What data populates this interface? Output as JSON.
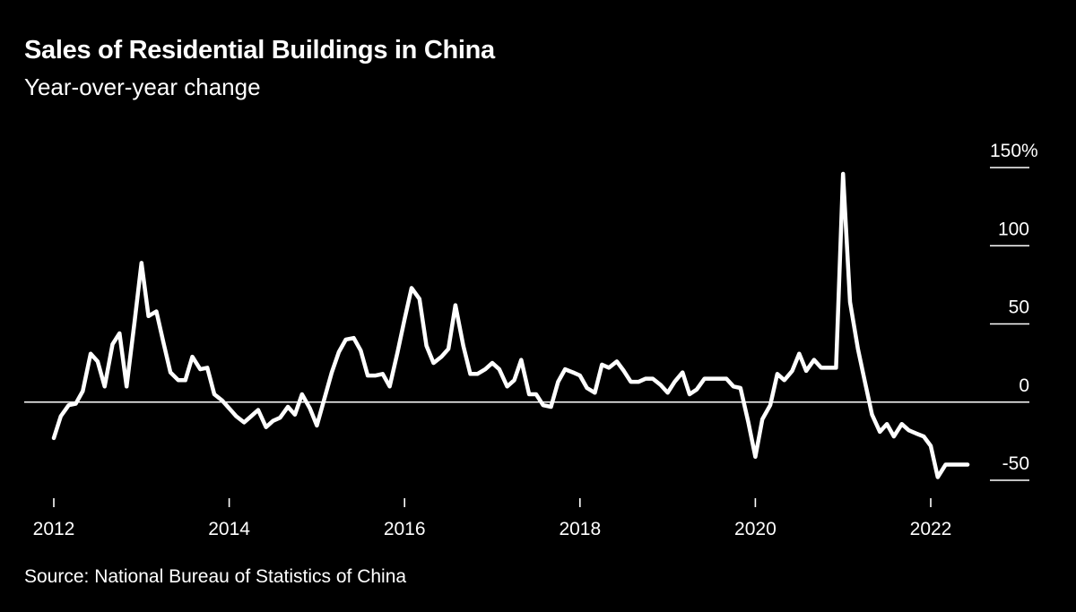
{
  "header": {
    "title": "Sales of Residential Buildings in China",
    "subtitle": "Year-over-year change"
  },
  "footer": {
    "source": "Source: National Bureau of Statistics of China"
  },
  "colors": {
    "background": "#000000",
    "line": "#ffffff",
    "text": "#ffffff"
  },
  "chart_data": {
    "type": "line",
    "title": "Sales of Residential Buildings in China",
    "subtitle": "Year-over-year change",
    "xlabel": "",
    "ylabel": "",
    "y_unit": "%",
    "ylim": [
      -50,
      150
    ],
    "xlim": [
      2012.0,
      2022.5
    ],
    "yticks": [
      -50,
      0,
      50,
      100,
      150
    ],
    "ytick_labels": [
      "-50",
      "0",
      "50",
      "100",
      "150%"
    ],
    "xticks": [
      2012,
      2014,
      2016,
      2018,
      2020,
      2022
    ],
    "xtick_labels": [
      "2012",
      "2014",
      "2016",
      "2018",
      "2020",
      "2022"
    ],
    "grid": false,
    "zero_line": true,
    "legend": "none",
    "series": [
      {
        "name": "Sales of residential buildings, YoY change (%)",
        "x": [
          2012.0,
          2012.08,
          2012.17,
          2012.25,
          2012.33,
          2012.42,
          2012.5,
          2012.58,
          2012.67,
          2012.75,
          2012.83,
          2012.92,
          2013.0,
          2013.08,
          2013.17,
          2013.25,
          2013.33,
          2013.42,
          2013.5,
          2013.58,
          2013.67,
          2013.75,
          2013.83,
          2013.92,
          2014.0,
          2014.08,
          2014.17,
          2014.25,
          2014.33,
          2014.42,
          2014.5,
          2014.58,
          2014.67,
          2014.75,
          2014.83,
          2014.92,
          2015.0,
          2015.08,
          2015.17,
          2015.25,
          2015.33,
          2015.42,
          2015.5,
          2015.58,
          2015.67,
          2015.75,
          2015.83,
          2015.92,
          2016.0,
          2016.08,
          2016.17,
          2016.25,
          2016.33,
          2016.42,
          2016.5,
          2016.58,
          2016.67,
          2016.75,
          2016.83,
          2016.92,
          2017.0,
          2017.08,
          2017.17,
          2017.25,
          2017.33,
          2017.42,
          2017.5,
          2017.58,
          2017.67,
          2017.75,
          2017.83,
          2017.92,
          2018.0,
          2018.08,
          2018.17,
          2018.25,
          2018.33,
          2018.42,
          2018.5,
          2018.58,
          2018.67,
          2018.75,
          2018.83,
          2018.92,
          2019.0,
          2019.08,
          2019.17,
          2019.25,
          2019.33,
          2019.42,
          2019.5,
          2019.58,
          2019.67,
          2019.75,
          2019.83,
          2019.92,
          2020.0,
          2020.08,
          2020.17,
          2020.25,
          2020.33,
          2020.42,
          2020.5,
          2020.58,
          2020.67,
          2020.75,
          2020.83,
          2020.92,
          2021.0,
          2021.08,
          2021.17,
          2021.25,
          2021.33,
          2021.42,
          2021.5,
          2021.58,
          2021.67,
          2021.75,
          2021.83,
          2021.92,
          2022.0,
          2022.08,
          2022.17,
          2022.25,
          2022.33,
          2022.42
        ],
        "values": [
          -23,
          -9,
          -2,
          -1,
          7,
          31,
          26,
          10,
          37,
          44,
          10,
          51,
          89,
          55,
          58,
          38,
          19,
          14,
          14,
          29,
          21,
          22,
          5,
          1,
          -4,
          -9,
          -13,
          -9,
          -5,
          -16,
          -12,
          -10,
          -3,
          -8,
          5,
          -4,
          -15,
          1,
          19,
          32,
          40,
          41,
          33,
          17,
          17,
          18,
          10,
          32,
          53,
          73,
          66,
          36,
          25,
          29,
          34,
          62,
          36,
          18,
          18,
          21,
          25,
          21,
          10,
          14,
          27,
          5,
          5,
          -2,
          -3,
          13,
          21,
          19,
          17,
          9,
          6,
          24,
          22,
          26,
          20,
          13,
          13,
          15,
          15,
          11,
          6,
          13,
          19,
          5,
          8,
          15,
          15,
          15,
          15,
          10,
          9,
          -13,
          -35,
          -11,
          -2,
          18,
          14,
          20,
          31,
          20,
          27,
          22,
          22,
          22,
          146,
          64,
          34,
          13,
          -8,
          -19,
          -14,
          -22,
          -14,
          -18,
          -20,
          -22,
          -28,
          -48,
          -40,
          -40,
          -40,
          -40
        ]
      }
    ]
  }
}
